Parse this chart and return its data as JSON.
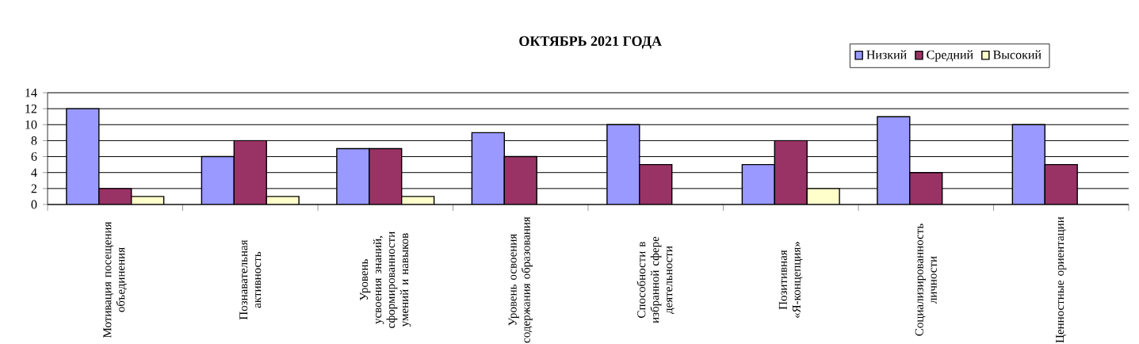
{
  "chart_data": {
    "type": "bar",
    "title": "ОКТЯБРЬ 2021 ГОДА",
    "categories": [
      "Мотивация посещения объединения",
      "Познавательная активность",
      "Уровень усвоения знаний, сформированности умений и навыков",
      "Уровень освоения содержания образования",
      "Способности в избранной сфере деятельности",
      "Позитивная «Я-концепция»",
      "Социализированность личности",
      "Ценностные ориентации"
    ],
    "series": [
      {
        "name": "Низкий",
        "color": "#9999ff",
        "values": [
          12,
          6,
          7,
          9,
          10,
          5,
          11,
          10
        ]
      },
      {
        "name": "Средний",
        "color": "#993366",
        "values": [
          2,
          8,
          7,
          6,
          5,
          8,
          4,
          5
        ]
      },
      {
        "name": "Высокий",
        "color": "#ffffcc",
        "values": [
          1,
          1,
          1,
          null,
          null,
          2,
          null,
          null
        ]
      }
    ],
    "ylim": [
      0,
      14
    ],
    "yticks": [
      0,
      2,
      4,
      6,
      8,
      10,
      12,
      14
    ],
    "grid": "y",
    "legend": "top right"
  }
}
